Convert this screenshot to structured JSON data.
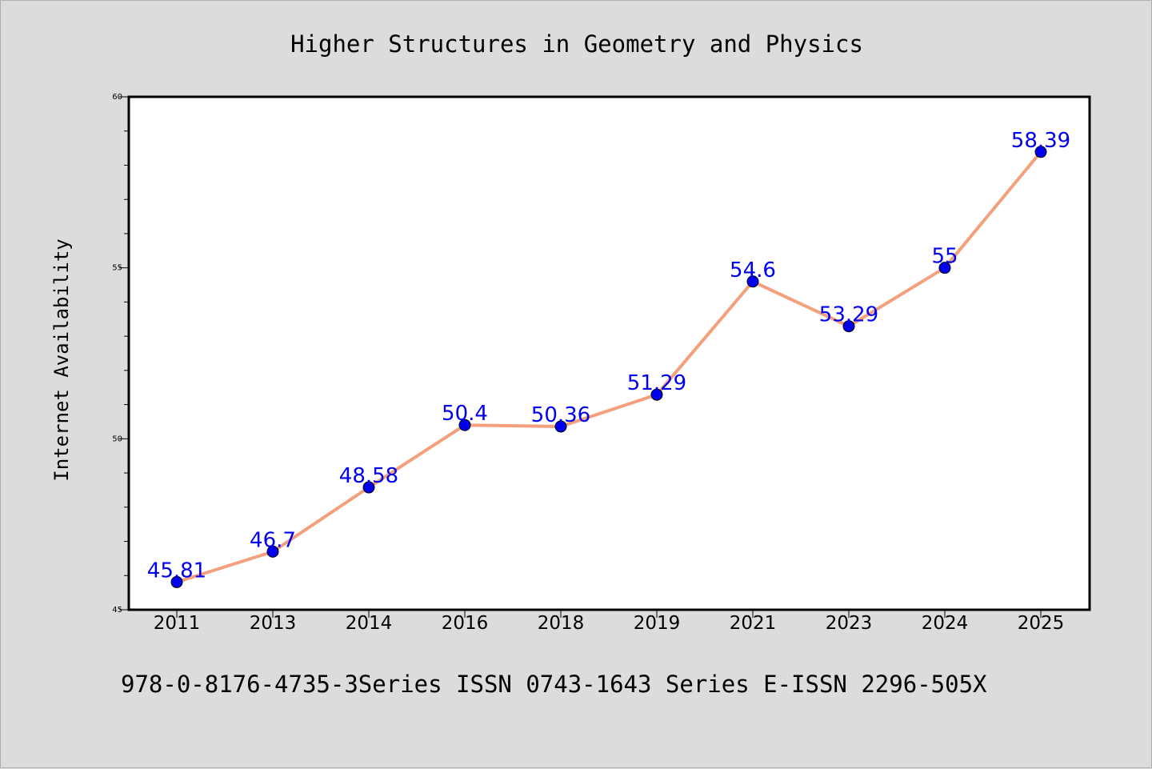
{
  "chart_data": {
    "type": "line",
    "title": "Higher Structures in Geometry and Physics",
    "xlabel": "",
    "ylabel": "Internet Availability",
    "categories": [
      "2011",
      "2013",
      "2014",
      "2016",
      "2018",
      "2019",
      "2021",
      "2023",
      "2024",
      "2025"
    ],
    "series": [
      {
        "values": [
          45.81,
          46.7,
          48.58,
          50.4,
          50.36,
          51.29,
          54.6,
          53.29,
          55,
          58.39
        ],
        "labels": [
          "45.81",
          "46.7",
          "48.58",
          "50.4",
          "50.36",
          "51.29",
          "54.6",
          "53.29",
          "55",
          "58.39"
        ],
        "line_color": "#f4a07c",
        "marker_color": "#0000ee"
      }
    ],
    "ylim": [
      45,
      60
    ],
    "yticks": [
      "45",
      "50",
      "55",
      "60"
    ],
    "grid": false,
    "legend": "none"
  },
  "footer": {
    "text": "978-0-8176-4735-3Series ISSN 0743-1643 Series E-ISSN 2296-505X"
  },
  "colors": {
    "background": "#dcdcdc",
    "plot_background": "#ffffff",
    "axis": "#000000",
    "label_text": "#0000ee"
  }
}
